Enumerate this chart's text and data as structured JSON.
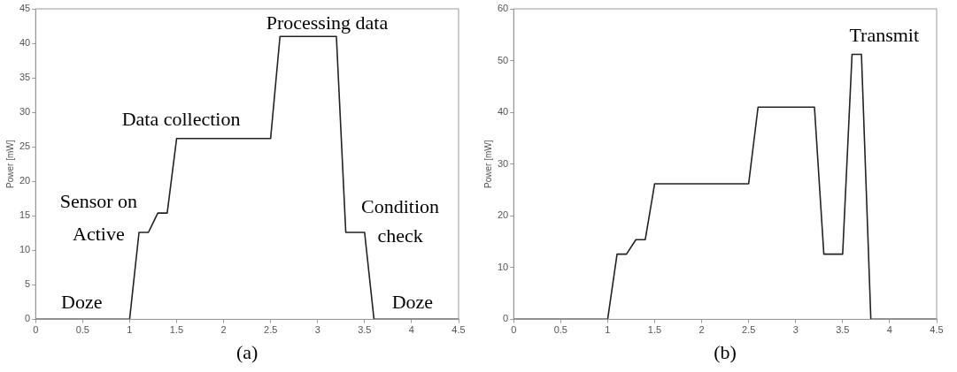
{
  "chart_data": [
    {
      "type": "line",
      "xlabel": "(a)",
      "ylabel": "Power [mW]",
      "x": [
        0,
        1,
        1.1,
        1.2,
        1.3,
        1.4,
        1.5,
        2.5,
        2.6,
        3.2,
        3.3,
        3.5,
        3.6,
        4.5
      ],
      "series": [
        {
          "color": "#222222",
          "values": [
            0,
            0,
            12.6,
            12.6,
            15.4,
            15.4,
            26.2,
            26.2,
            41,
            41,
            12.6,
            12.6,
            0,
            0
          ]
        }
      ],
      "xlim": [
        0,
        4.5
      ],
      "xticks": [
        0,
        0.5,
        1,
        1.5,
        2,
        2.5,
        3,
        3.5,
        4,
        4.5
      ],
      "ylim": [
        0,
        45
      ],
      "yticks": [
        0,
        5,
        10,
        15,
        20,
        25,
        30,
        35,
        40,
        45
      ],
      "marker": "none",
      "line_style": "solid",
      "annotations": [
        "Doze",
        "Sensor on",
        "Active",
        "Data collection",
        "Processing data",
        "Condition",
        "check",
        "Doze"
      ]
    },
    {
      "type": "line",
      "xlabel": "(b)",
      "ylabel": "Power [mW]",
      "x": [
        0,
        1,
        1.1,
        1.2,
        1.3,
        1.4,
        1.5,
        2.5,
        2.6,
        3.2,
        3.3,
        3.5,
        3.6,
        3.7,
        3.8,
        4.5
      ],
      "series": [
        {
          "color": "#222222",
          "values": [
            0,
            0,
            12.6,
            12.6,
            15.4,
            15.4,
            26.2,
            26.2,
            41,
            41,
            12.6,
            12.6,
            51.2,
            51.2,
            0,
            0
          ]
        }
      ],
      "xlim": [
        0,
        4.5
      ],
      "xticks": [
        0,
        0.5,
        1,
        1.5,
        2,
        2.5,
        3,
        3.5,
        4,
        4.5
      ],
      "ylim": [
        0,
        60
      ],
      "yticks": [
        0,
        10,
        20,
        30,
        40,
        50,
        60
      ],
      "marker": "none",
      "line_style": "solid",
      "annotations": [
        "Transmit"
      ]
    }
  ]
}
